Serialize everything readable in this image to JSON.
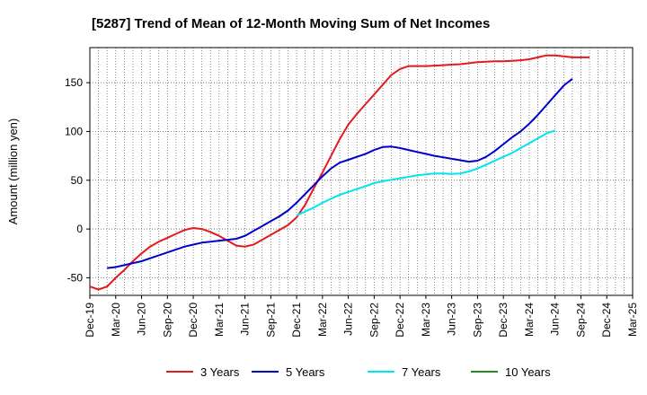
{
  "chart_data": {
    "type": "line",
    "title": "[5287]  Trend of Mean of 12-Month Moving Sum of Net Incomes",
    "ylabel": "Amount (million yen)",
    "xlabel": "",
    "ylim": [
      -68,
      186
    ],
    "yticks": [
      -50,
      0,
      50,
      100,
      150
    ],
    "xticks": [
      "Dec-19",
      "Mar-20",
      "Jun-20",
      "Sep-20",
      "Dec-20",
      "Mar-21",
      "Jun-21",
      "Sep-21",
      "Dec-21",
      "Mar-22",
      "Jun-22",
      "Sep-22",
      "Dec-22",
      "Mar-23",
      "Jun-23",
      "Sep-23",
      "Dec-23",
      "Mar-24",
      "Jun-24",
      "Sep-24",
      "Dec-24",
      "Mar-25"
    ],
    "grid": true,
    "legend_position": "bottom",
    "series": [
      {
        "name": "3 Years",
        "color": "#e41a1c",
        "points": [
          [
            "Dec-19",
            -59
          ],
          [
            "Jan-20",
            -62
          ],
          [
            "Feb-20",
            -59
          ],
          [
            "Mar-20",
            -50
          ],
          [
            "Apr-20",
            -42
          ],
          [
            "May-20",
            -33
          ],
          [
            "Jun-20",
            -25
          ],
          [
            "Jul-20",
            -18
          ],
          [
            "Aug-20",
            -13
          ],
          [
            "Sep-20",
            -9
          ],
          [
            "Oct-20",
            -5
          ],
          [
            "Nov-20",
            -1
          ],
          [
            "Dec-20",
            1
          ],
          [
            "Jan-21",
            0
          ],
          [
            "Feb-21",
            -3
          ],
          [
            "Mar-21",
            -7
          ],
          [
            "Apr-21",
            -12
          ],
          [
            "May-21",
            -17
          ],
          [
            "Jun-21",
            -18
          ],
          [
            "Jul-21",
            -16
          ],
          [
            "Aug-21",
            -11
          ],
          [
            "Sep-21",
            -6
          ],
          [
            "Oct-21",
            -1
          ],
          [
            "Nov-21",
            4
          ],
          [
            "Dec-21",
            12
          ],
          [
            "Jan-22",
            25
          ],
          [
            "Feb-22",
            42
          ],
          [
            "Mar-22",
            58
          ],
          [
            "Apr-22",
            75
          ],
          [
            "May-22",
            92
          ],
          [
            "Jun-22",
            107
          ],
          [
            "Jul-22",
            118
          ],
          [
            "Aug-22",
            128
          ],
          [
            "Sep-22",
            138
          ],
          [
            "Oct-22",
            148
          ],
          [
            "Nov-22",
            158
          ],
          [
            "Dec-22",
            164
          ],
          [
            "Jan-23",
            167
          ],
          [
            "Feb-23",
            167
          ],
          [
            "Mar-23",
            167
          ],
          [
            "Apr-23",
            167.5
          ],
          [
            "May-23",
            168
          ],
          [
            "Jun-23",
            168.5
          ],
          [
            "Jul-23",
            169
          ],
          [
            "Aug-23",
            170
          ],
          [
            "Sep-23",
            171
          ],
          [
            "Oct-23",
            171.5
          ],
          [
            "Nov-23",
            172
          ],
          [
            "Dec-23",
            172
          ],
          [
            "Jan-24",
            172.5
          ],
          [
            "Feb-24",
            173
          ],
          [
            "Mar-24",
            174
          ],
          [
            "Apr-24",
            176
          ],
          [
            "May-24",
            178
          ],
          [
            "Jun-24",
            178
          ],
          [
            "Jul-24",
            177
          ],
          [
            "Aug-24",
            176
          ],
          [
            "Sep-24",
            176
          ],
          [
            "Oct-24",
            176
          ]
        ]
      },
      {
        "name": "5 Years",
        "color": "#0000cd",
        "points": [
          [
            "Feb-20",
            -40
          ],
          [
            "Mar-20",
            -39
          ],
          [
            "Apr-20",
            -37
          ],
          [
            "May-20",
            -35
          ],
          [
            "Jun-20",
            -33
          ],
          [
            "Jul-20",
            -30
          ],
          [
            "Aug-20",
            -27
          ],
          [
            "Sep-20",
            -24
          ],
          [
            "Oct-20",
            -21
          ],
          [
            "Nov-20",
            -18
          ],
          [
            "Dec-20",
            -16
          ],
          [
            "Jan-21",
            -14
          ],
          [
            "Feb-21",
            -13
          ],
          [
            "Mar-21",
            -12
          ],
          [
            "Apr-21",
            -11
          ],
          [
            "May-21",
            -10
          ],
          [
            "Jun-21",
            -7
          ],
          [
            "Jul-21",
            -2
          ],
          [
            "Aug-21",
            3
          ],
          [
            "Sep-21",
            8
          ],
          [
            "Oct-21",
            13
          ],
          [
            "Nov-21",
            19
          ],
          [
            "Dec-21",
            27
          ],
          [
            "Jan-22",
            36
          ],
          [
            "Feb-22",
            45
          ],
          [
            "Mar-22",
            54
          ],
          [
            "Apr-22",
            62
          ],
          [
            "May-22",
            68
          ],
          [
            "Jun-22",
            71
          ],
          [
            "Jul-22",
            74
          ],
          [
            "Aug-22",
            77
          ],
          [
            "Sep-22",
            81
          ],
          [
            "Oct-22",
            84
          ],
          [
            "Nov-22",
            84.5
          ],
          [
            "Dec-22",
            83
          ],
          [
            "Jan-23",
            81
          ],
          [
            "Feb-23",
            79
          ],
          [
            "Mar-23",
            77
          ],
          [
            "Apr-23",
            75
          ],
          [
            "May-23",
            73.5
          ],
          [
            "Jun-23",
            72
          ],
          [
            "Jul-23",
            70.5
          ],
          [
            "Aug-23",
            69
          ],
          [
            "Sep-23",
            70
          ],
          [
            "Oct-23",
            74
          ],
          [
            "Nov-23",
            80
          ],
          [
            "Dec-23",
            87
          ],
          [
            "Jan-24",
            94
          ],
          [
            "Feb-24",
            100
          ],
          [
            "Mar-24",
            108
          ],
          [
            "Apr-24",
            117
          ],
          [
            "May-24",
            127
          ],
          [
            "Jun-24",
            137
          ],
          [
            "Jul-24",
            147
          ],
          [
            "Aug-24",
            154
          ]
        ]
      },
      {
        "name": "7 Years",
        "color": "#00e5ee",
        "points": [
          [
            "Dec-21",
            14
          ],
          [
            "Jan-22",
            18
          ],
          [
            "Feb-22",
            22
          ],
          [
            "Mar-22",
            27
          ],
          [
            "Apr-22",
            31
          ],
          [
            "May-22",
            35
          ],
          [
            "Jun-22",
            38
          ],
          [
            "Jul-22",
            41
          ],
          [
            "Aug-22",
            44
          ],
          [
            "Sep-22",
            47
          ],
          [
            "Oct-22",
            49
          ],
          [
            "Nov-22",
            50.5
          ],
          [
            "Dec-22",
            52
          ],
          [
            "Jan-23",
            53.5
          ],
          [
            "Feb-23",
            55
          ],
          [
            "Mar-23",
            56
          ],
          [
            "Apr-23",
            57
          ],
          [
            "May-23",
            57
          ],
          [
            "Jun-23",
            56.5
          ],
          [
            "Jul-23",
            57
          ],
          [
            "Aug-23",
            59
          ],
          [
            "Sep-23",
            62
          ],
          [
            "Oct-23",
            66
          ],
          [
            "Nov-23",
            70
          ],
          [
            "Dec-23",
            74
          ],
          [
            "Jan-24",
            78
          ],
          [
            "Feb-24",
            83
          ],
          [
            "Mar-24",
            88
          ],
          [
            "Apr-24",
            93
          ],
          [
            "May-24",
            98
          ],
          [
            "Jun-24",
            101
          ]
        ]
      },
      {
        "name": "10 Years",
        "color": "#228b22",
        "points": []
      }
    ]
  }
}
